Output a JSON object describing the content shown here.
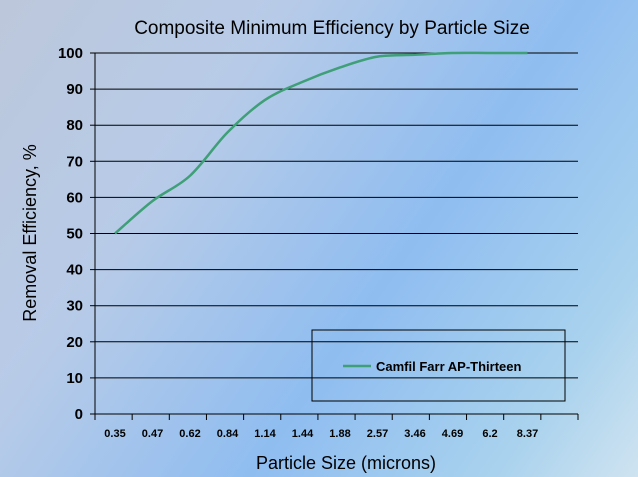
{
  "chart_data": {
    "type": "line",
    "title": "Composite Minimum Efficiency by Particle Size",
    "xlabel": "Particle Size (microns)",
    "ylabel": "Removal Efficiency, %",
    "ylim": [
      0,
      100
    ],
    "yticks": [
      "0",
      "10",
      "20",
      "30",
      "40",
      "50",
      "60",
      "70",
      "80",
      "90",
      "100"
    ],
    "categories": [
      "0.35",
      "0.47",
      "0.62",
      "0.84",
      "1.14",
      "1.44",
      "1.88",
      "2.57",
      "3.46",
      "4.69",
      "6.2",
      "8.37"
    ],
    "series": [
      {
        "name": "Camfil Farr AP-Thirteen",
        "color": "#3f9f77",
        "values": [
          50,
          59,
          66,
          78,
          87,
          92,
          96,
          99,
          99.5,
          100,
          100,
          100
        ]
      }
    ],
    "grid": "horizontal",
    "legend": "bottom-right"
  }
}
